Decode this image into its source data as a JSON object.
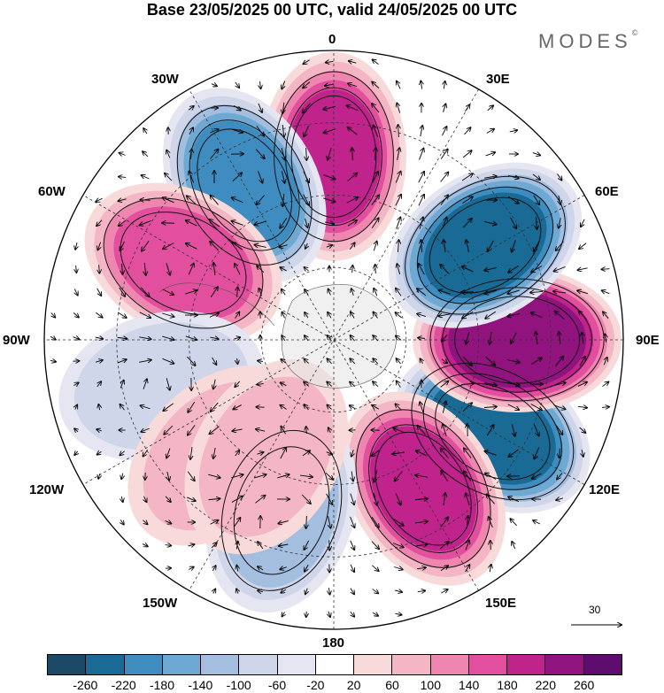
{
  "title": "Base 23/05/2025 00 UTC, valid 24/05/2025 00 UTC",
  "brand": {
    "name": "MODES",
    "mark": "©"
  },
  "labels": {
    "lon_0": "0",
    "lon_30e": "30E",
    "lon_60e": "60E",
    "lon_90e": "90E",
    "lon_120e": "120E",
    "lon_150e": "150E",
    "lon_180": "180",
    "lon_150w": "150W",
    "lon_120w": "120W",
    "lon_90w": "90W",
    "lon_60w": "60W",
    "lon_30w": "30W"
  },
  "ref_vector": "30",
  "colorbar": {
    "colors": [
      "#1c4a66",
      "#1a6a96",
      "#3f8dc0",
      "#6da9d3",
      "#a4bedf",
      "#cfd6ea",
      "#e6e6f2",
      "#ffffff",
      "#f8dada",
      "#f4b6c4",
      "#ef86b0",
      "#e14f9e",
      "#c0238c",
      "#90137e",
      "#5e0c6e"
    ],
    "ticks": [
      "-260",
      "-220",
      "-180",
      "-140",
      "-100",
      "-60",
      "-20",
      "20",
      "60",
      "100",
      "140",
      "180",
      "220",
      "260"
    ]
  },
  "anomalies": [
    {
      "lon": 60,
      "colat": 38,
      "value": -240
    },
    {
      "lon": 90,
      "colat": 38,
      "value": 250
    },
    {
      "lon": 122,
      "colat": 37,
      "value": -230
    },
    {
      "lon": 180,
      "colat": 38,
      "value": 180
    },
    {
      "lon": 210,
      "colat": 37,
      "value": -190
    },
    {
      "lon": 243,
      "colat": 35,
      "value": 160
    },
    {
      "lon": 31,
      "colat": 36,
      "value": 180
    },
    {
      "lon": 343,
      "colat": 37,
      "value": -120
    },
    {
      "lon": 285,
      "colat": 37,
      "value": -90
    },
    {
      "lon": 315,
      "colat": 34,
      "value": 75
    },
    {
      "lon": 330,
      "colat": 28,
      "value": 70
    }
  ]
}
